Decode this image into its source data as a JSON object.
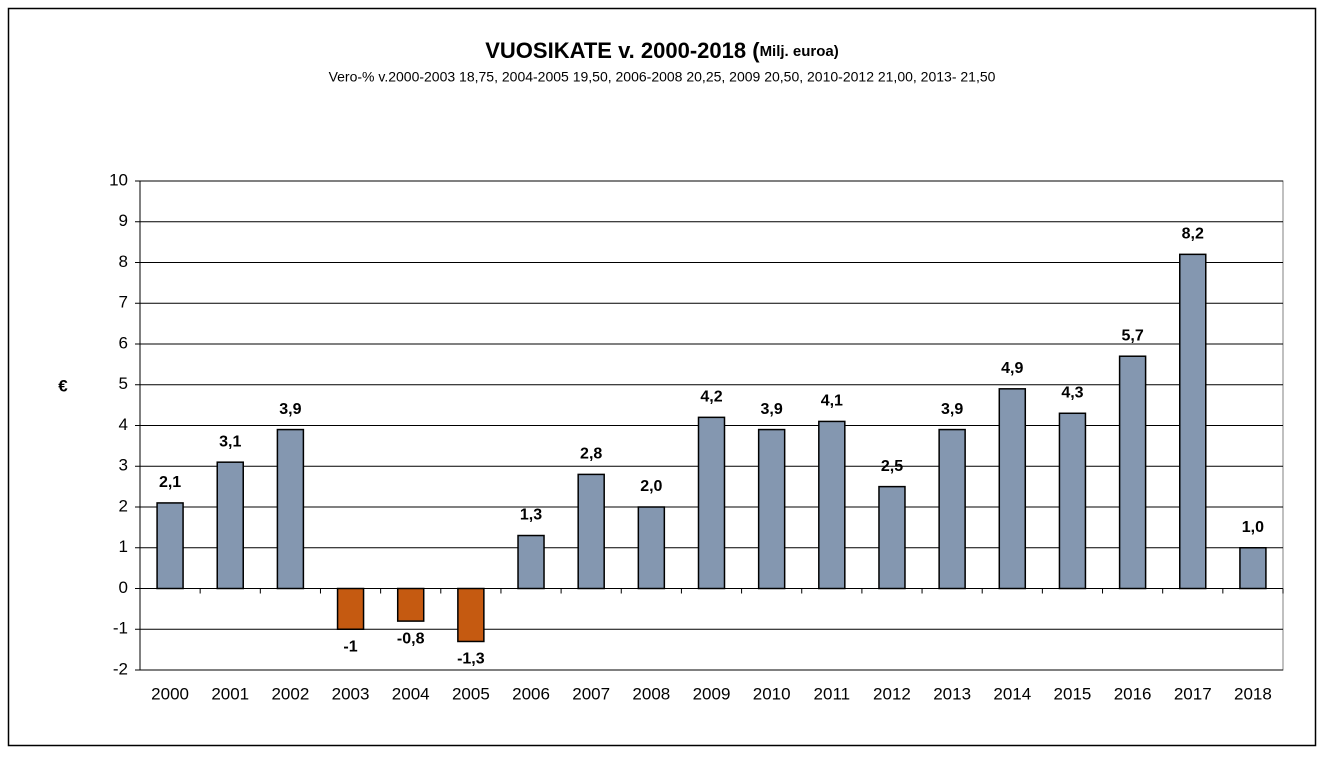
{
  "chart_data": {
    "type": "bar",
    "title": "VUOSIKATE v. 2000-2018 (",
    "title_unit": "Milj. euroa)",
    "subtitle": "Vero-% v.2000-2003 18,75, 2004-2005 19,50, 2006-2008 20,25, 2009 20,50, 2010-2012 21,00, 2013- 21,50",
    "y_label": "€",
    "categories": [
      "2000",
      "2001",
      "2002",
      "2003",
      "2004",
      "2005",
      "2006",
      "2007",
      "2008",
      "2009",
      "2010",
      "2011",
      "2012",
      "2013",
      "2014",
      "2015",
      "2016",
      "2017",
      "2018"
    ],
    "values": [
      2.1,
      3.1,
      3.9,
      -1,
      -0.8,
      -1.3,
      1.3,
      2.8,
      2.0,
      4.2,
      3.9,
      4.1,
      2.5,
      3.9,
      4.9,
      4.3,
      5.7,
      8.2,
      1.0
    ],
    "value_labels": [
      "2,1",
      "3,1",
      "3,9",
      "-1",
      "-0,8",
      "-1,3",
      "1,3",
      "2,8",
      "2,0",
      "4,2",
      "3,9",
      "4,1",
      "2,5",
      "3,9",
      "4,9",
      "4,3",
      "5,7",
      "8,2",
      "1,0"
    ],
    "color": "#8497b0",
    "negative_color": "#c55a11",
    "ylim": [
      -2,
      10
    ],
    "yticks": [
      -2,
      -1,
      0,
      1,
      2,
      3,
      4,
      5,
      6,
      7,
      8,
      9,
      10
    ],
    "grid": true
  }
}
